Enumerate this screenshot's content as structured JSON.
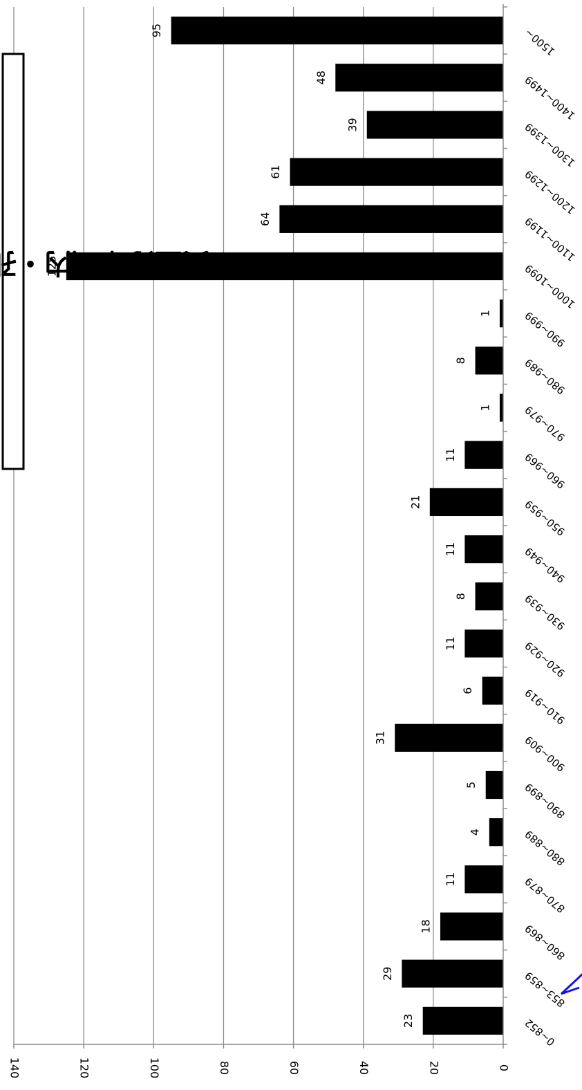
{
  "chart_data": {
    "type": "bar",
    "orientation": "rotated-180",
    "title": "貴金分布（内・孔表部寺表退集）",
    "categories": [
      "0~852",
      "853~859",
      "860~869",
      "870~879",
      "880~889",
      "890~899",
      "900~909",
      "910~919",
      "920~929",
      "930~939",
      "940~949",
      "950~959",
      "960~969",
      "970~979",
      "980~989",
      "990~999",
      "1000~1099",
      "1100~1199",
      "1200~1299",
      "1300~1399",
      "1400~1499",
      "1500~"
    ],
    "values": [
      23,
      29,
      18,
      11,
      4,
      5,
      31,
      6,
      11,
      8,
      11,
      21,
      11,
      1,
      8,
      1,
      125,
      64,
      61,
      39,
      48,
      95
    ],
    "ylim": [
      0,
      140
    ],
    "yticks": [
      0,
      20,
      40,
      60,
      80,
      100,
      120,
      140
    ],
    "grid": true,
    "bar_color": "#000000",
    "grid_color": "#8c8c8c",
    "annotation_color": "#1515e0"
  }
}
